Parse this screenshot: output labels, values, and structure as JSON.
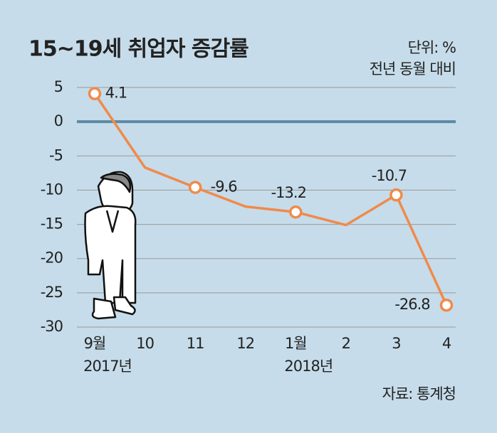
{
  "chart_data": {
    "type": "line",
    "title": "15~19세 취업자 증감률",
    "unit_label": "단위: %",
    "subtitle": "전년 동월 대비",
    "source": "자료: 통계청",
    "categories": [
      "9월",
      "10",
      "11",
      "12",
      "1월",
      "2",
      "3",
      "4"
    ],
    "year_labels": [
      "2017년",
      null,
      null,
      null,
      "2018년",
      null,
      null,
      null
    ],
    "series": [
      {
        "name": "15~19세 취업자 증감률",
        "color": "#f08a4b",
        "values": [
          4.1,
          -6.7,
          -9.6,
          -12.4,
          -13.2,
          -15.1,
          -10.7,
          -26.8
        ],
        "value_labels": [
          "4.1",
          null,
          "-9.6",
          null,
          "-13.2",
          null,
          "-10.7",
          "-26.8"
        ]
      }
    ],
    "ylim": [
      -30,
      5
    ],
    "yticks": [
      5,
      0,
      -5,
      -10,
      -15,
      -20,
      -25,
      -30
    ],
    "grid": true
  }
}
